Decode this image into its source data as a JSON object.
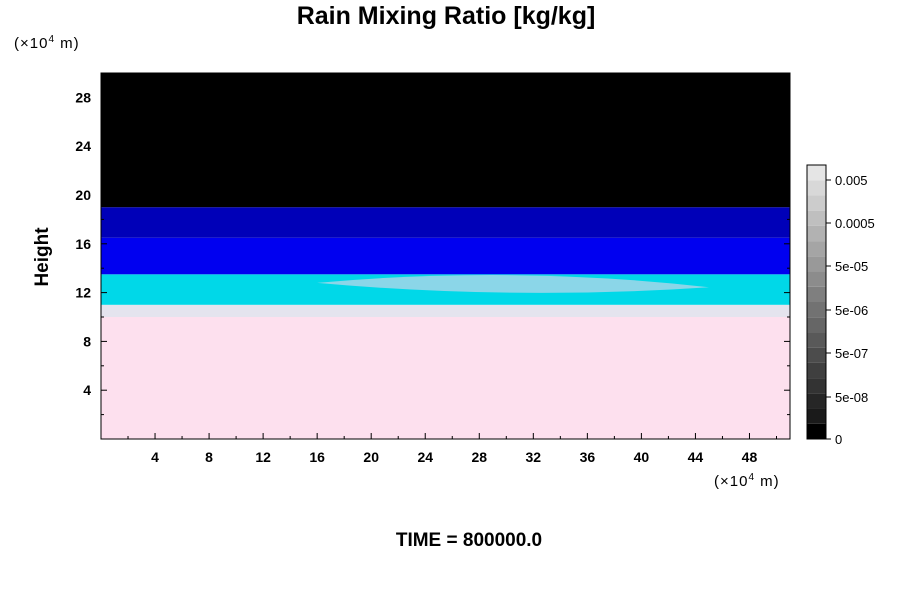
{
  "chart_data": {
    "type": "heatmap",
    "title": "Rain Mixing Ratio [kg/kg]",
    "ylabel": "Height",
    "x_unit": [
      "(×10",
      "4",
      " m)"
    ],
    "y_unit": [
      "(×10",
      "4",
      " m)"
    ],
    "xlim": [
      0,
      51
    ],
    "ylim": [
      0,
      30
    ],
    "x_ticks": [
      4,
      8,
      12,
      16,
      20,
      24,
      28,
      32,
      36,
      40,
      44,
      48
    ],
    "y_ticks": [
      4,
      8,
      12,
      16,
      20,
      24,
      28
    ],
    "colorbar_labels": [
      "0.005",
      "0.0005",
      "5e-05",
      "5e-06",
      "5e-07",
      "5e-08",
      "0"
    ],
    "colorbar_colors": [
      "#000000",
      "#1a1a1a",
      "#262626",
      "#333333",
      "#3f3f3f",
      "#4c4c4c",
      "#595959",
      "#666666",
      "#727272",
      "#7f7f7f",
      "#8c8c8c",
      "#999999",
      "#a5a5a5",
      "#b2b2b2",
      "#bfbfbf",
      "#cccccc",
      "#d8d8d8",
      "#e5e5e5"
    ],
    "bands": [
      {
        "from": 0,
        "to": 10,
        "color": "#fde0ee"
      },
      {
        "from": 10,
        "to": 11,
        "color": "#e4e4ee"
      },
      {
        "from": 11,
        "to": 13.5,
        "color": "#00d8e8"
      },
      {
        "from": 13.5,
        "to": 16.5,
        "color": "#0000f0"
      },
      {
        "from": 16.5,
        "to": 19,
        "color": "#0000b8"
      },
      {
        "from": 19,
        "to": 30,
        "color": "#000000"
      }
    ],
    "features": [
      {
        "shape": "lens",
        "x": [
          16,
          45
        ],
        "y": [
          12.2,
          13.4
        ],
        "color": "#9ad6e8"
      }
    ]
  },
  "footer": {
    "time": "TIME = 800000.0"
  }
}
